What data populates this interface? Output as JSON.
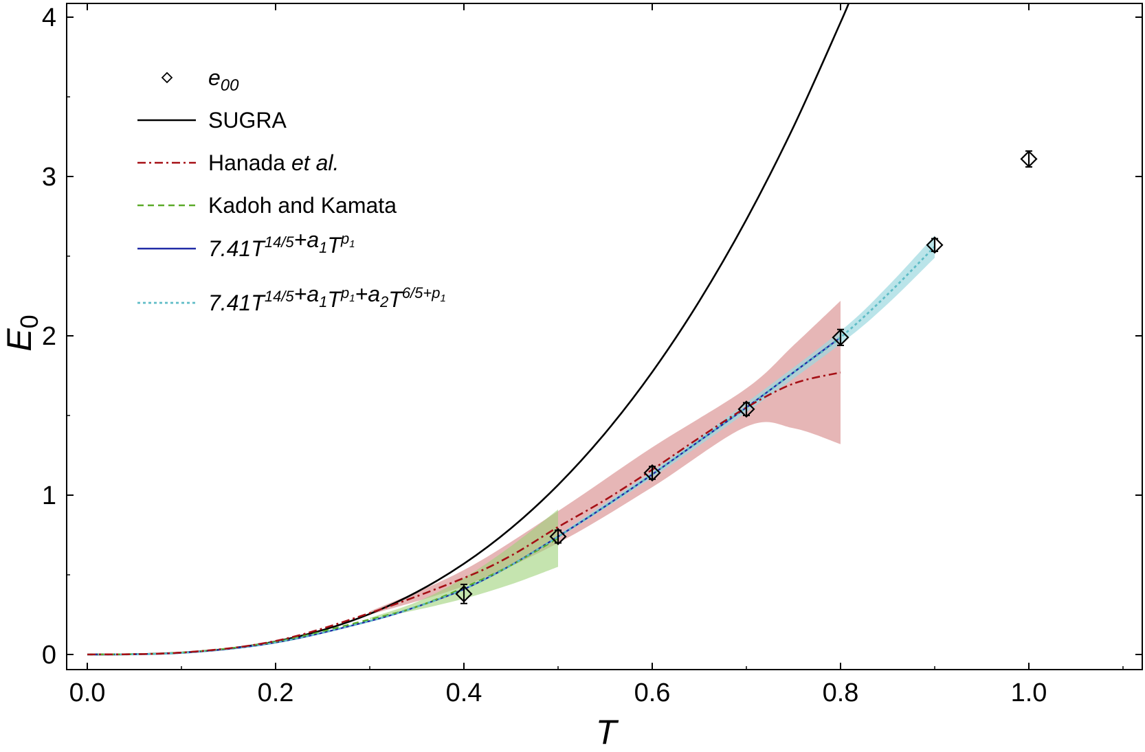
{
  "chart_data": {
    "type": "line",
    "xlabel": "T",
    "ylabel": "E0",
    "xlim": [
      -0.02,
      1.125
    ],
    "ylim": [
      -0.08,
      4.08
    ],
    "xticks": [
      "0.0",
      "0.2",
      "0.4",
      "0.6",
      "0.8",
      "1.0"
    ],
    "yticks": [
      "0",
      "1",
      "2",
      "3",
      "4"
    ],
    "legend_position": "top-left",
    "colors": {
      "sugra": "#000000",
      "hanada": "#a50f15",
      "hanada_band": "#d27a7a",
      "kadoh": "#5aaa28",
      "kadoh_band": "#9ed27a",
      "fit1": "#1f2aa6",
      "fit2": "#5fbcc6",
      "fit2_band": "#9dd9df"
    },
    "legend": [
      {
        "key": "e00",
        "marker": "diamond",
        "label": "e",
        "sub": "00"
      },
      {
        "key": "sugra",
        "line": "solid",
        "label": "SUGRA"
      },
      {
        "key": "hanada",
        "line": "dashdot",
        "label_plain": "Hanada ",
        "label_italic": "et al."
      },
      {
        "key": "kadoh",
        "line": "dashed",
        "label": "Kadoh and Kamata"
      },
      {
        "key": "fit1",
        "line": "solid",
        "formula": "7.41T^{14/5}+a_1T^{p_1}"
      },
      {
        "key": "fit2",
        "line": "dotted",
        "formula": "7.41T^{14/5}+a_1T^{p_1}+a_2T^{6/5+p_1}"
      }
    ],
    "points": {
      "name": "e00",
      "x": [
        0.4,
        0.5,
        0.6,
        0.7,
        0.8,
        0.9,
        1.0
      ],
      "y": [
        0.38,
        0.74,
        1.14,
        1.54,
        1.99,
        2.57,
        3.11
      ],
      "err": [
        0.06,
        0.04,
        0.04,
        0.04,
        0.05,
        0.04,
        0.05
      ]
    },
    "sugra": {
      "name": "SUGRA",
      "coef": 7.41,
      "power": 2.8,
      "x": [
        0.0,
        0.05,
        0.1,
        0.15,
        0.2,
        0.25,
        0.3,
        0.35,
        0.4,
        0.45,
        0.5,
        0.55,
        0.6,
        0.65,
        0.7,
        0.75,
        0.8,
        0.81
      ]
    },
    "hanada": {
      "name": "Hanada et al.",
      "x": [
        0.0,
        0.1,
        0.2,
        0.3,
        0.4,
        0.45,
        0.5,
        0.55,
        0.6,
        0.65,
        0.7,
        0.75,
        0.8
      ],
      "y": [
        0.0,
        0.012,
        0.085,
        0.26,
        0.48,
        0.62,
        0.8,
        0.97,
        1.16,
        1.36,
        1.55,
        1.7,
        1.77
      ],
      "band_x": [
        0.3,
        0.4,
        0.5,
        0.6,
        0.7,
        0.75,
        0.8
      ],
      "band_lo": [
        0.25,
        0.43,
        0.7,
        1.05,
        1.43,
        1.42,
        1.32
      ],
      "band_hi": [
        0.27,
        0.53,
        0.9,
        1.3,
        1.67,
        1.94,
        2.22
      ]
    },
    "kadoh": {
      "name": "Kadoh and Kamata",
      "x": [
        0.0,
        0.1,
        0.2,
        0.3,
        0.35,
        0.4,
        0.45,
        0.5
      ],
      "y": [
        0.0,
        0.012,
        0.08,
        0.22,
        0.3,
        0.42,
        0.56,
        0.73
      ],
      "band_x": [
        0.3,
        0.35,
        0.4,
        0.45,
        0.5
      ],
      "band_lo": [
        0.22,
        0.28,
        0.35,
        0.44,
        0.55
      ],
      "band_hi": [
        0.23,
        0.33,
        0.48,
        0.68,
        0.91
      ]
    },
    "fit1": {
      "name": "fit1",
      "x": [
        0.0,
        0.1,
        0.2,
        0.3,
        0.35,
        0.4,
        0.45,
        0.5,
        0.55,
        0.6,
        0.65,
        0.7,
        0.75,
        0.8
      ],
      "y": [
        0.0,
        0.01,
        0.075,
        0.21,
        0.3,
        0.41,
        0.56,
        0.74,
        0.93,
        1.13,
        1.34,
        1.55,
        1.77,
        1.99
      ]
    },
    "fit2": {
      "name": "fit2",
      "x": [
        0.0,
        0.1,
        0.2,
        0.3,
        0.35,
        0.4,
        0.45,
        0.5,
        0.55,
        0.6,
        0.65,
        0.7,
        0.75,
        0.8,
        0.85,
        0.9
      ],
      "y": [
        0.0,
        0.01,
        0.075,
        0.21,
        0.3,
        0.41,
        0.56,
        0.74,
        0.93,
        1.13,
        1.34,
        1.55,
        1.77,
        1.99,
        2.26,
        2.56
      ],
      "band_x": [
        0.5,
        0.6,
        0.7,
        0.8,
        0.85,
        0.9
      ],
      "band_lo": [
        0.73,
        1.11,
        1.52,
        1.95,
        2.2,
        2.49
      ],
      "band_hi": [
        0.75,
        1.15,
        1.58,
        2.03,
        2.31,
        2.63
      ]
    }
  }
}
